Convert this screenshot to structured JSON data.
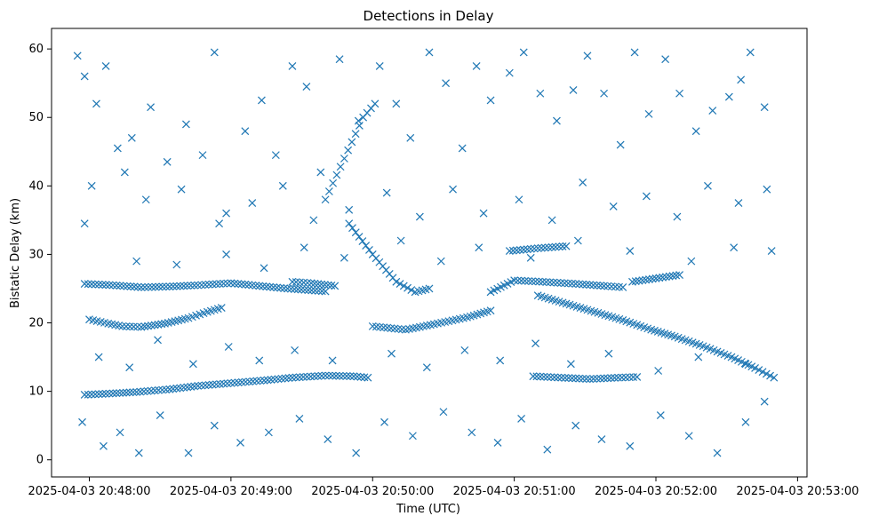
{
  "chart_data": {
    "type": "scatter",
    "title": "Detections in Delay",
    "xlabel": "Time (UTC)",
    "ylabel": "Bistatic Delay (km)",
    "xlim": [
      "2025-04-03 20:47:44",
      "2025-04-03 20:53:04"
    ],
    "ylim": [
      -2.5,
      63
    ],
    "x_ticks": [
      "2025-04-03 20:48:00",
      "2025-04-03 20:49:00",
      "2025-04-03 20:50:00",
      "2025-04-03 20:51:00",
      "2025-04-03 20:52:00",
      "2025-04-03 20:53:00"
    ],
    "y_ticks": [
      0,
      10,
      20,
      30,
      40,
      50,
      60
    ],
    "marker": "x",
    "color": "#1f77b4",
    "grid": false,
    "series": [
      {
        "tracks": [
          {
            "t": [
              [
                "2025-04-03 20:47:58",
                25.7
              ],
              [
                "2025-04-03 20:48:10",
                25.5
              ],
              [
                "2025-04-03 20:48:22",
                25.2
              ],
              [
                "2025-04-03 20:48:34",
                25.3
              ],
              [
                "2025-04-03 20:48:46",
                25.5
              ],
              [
                "2025-04-03 20:49:00",
                25.8
              ],
              [
                "2025-04-03 20:49:12",
                25.4
              ],
              [
                "2025-04-03 20:49:24",
                25.0
              ],
              [
                "2025-04-03 20:49:40",
                24.6
              ]
            ]
          },
          {
            "t": [
              [
                "2025-04-03 20:48:00",
                20.5
              ],
              [
                "2025-04-03 20:48:08",
                19.9
              ],
              [
                "2025-04-03 20:48:14",
                19.5
              ],
              [
                "2025-04-03 20:48:22",
                19.4
              ],
              [
                "2025-04-03 20:48:32",
                19.9
              ],
              [
                "2025-04-03 20:48:42",
                20.7
              ],
              [
                "2025-04-03 20:48:50",
                21.6
              ],
              [
                "2025-04-03 20:48:56",
                22.2
              ]
            ]
          },
          {
            "t": [
              [
                "2025-04-03 20:47:58",
                9.5
              ],
              [
                "2025-04-03 20:48:10",
                9.7
              ],
              [
                "2025-04-03 20:48:20",
                9.9
              ],
              [
                "2025-04-03 20:48:34",
                10.3
              ],
              [
                "2025-04-03 20:48:46",
                10.8
              ],
              [
                "2025-04-03 20:49:00",
                11.2
              ],
              [
                "2025-04-03 20:49:14",
                11.6
              ],
              [
                "2025-04-03 20:49:26",
                12.0
              ],
              [
                "2025-04-03 20:49:40",
                12.3
              ],
              [
                "2025-04-03 20:49:52",
                12.2
              ],
              [
                "2025-04-03 20:49:58",
                12.0
              ]
            ]
          },
          {
            "t": [
              [
                "2025-04-03 20:49:26",
                26.0
              ],
              [
                "2025-04-03 20:49:34",
                25.8
              ],
              [
                "2025-04-03 20:49:44",
                25.4
              ]
            ]
          },
          {
            "t": [
              [
                "2025-04-03 20:49:40",
                38.0
              ],
              [
                "2025-04-03 20:49:48",
                44.0
              ],
              [
                "2025-04-03 20:49:56",
                50.0
              ],
              [
                "2025-04-03 20:50:01",
                52.0
              ]
            ]
          },
          {
            "t": [
              [
                "2025-04-03 20:49:50",
                34.5
              ],
              [
                "2025-04-03 20:50:00",
                30.0
              ],
              [
                "2025-04-03 20:50:10",
                26.0
              ],
              [
                "2025-04-03 20:50:18",
                24.5
              ],
              [
                "2025-04-03 20:50:24",
                25.0
              ]
            ]
          },
          {
            "t": [
              [
                "2025-04-03 20:50:00",
                19.5
              ],
              [
                "2025-04-03 20:50:14",
                19.0
              ],
              [
                "2025-04-03 20:50:26",
                19.8
              ],
              [
                "2025-04-03 20:50:40",
                20.8
              ],
              [
                "2025-04-03 20:50:50",
                21.8
              ]
            ]
          },
          {
            "t": [
              [
                "2025-04-03 20:50:50",
                24.5
              ],
              [
                "2025-04-03 20:51:00",
                26.2
              ],
              [
                "2025-04-03 20:51:12",
                26.0
              ],
              [
                "2025-04-03 20:51:26",
                25.7
              ],
              [
                "2025-04-03 20:51:38",
                25.4
              ],
              [
                "2025-04-03 20:51:46",
                25.2
              ]
            ]
          },
          {
            "t": [
              [
                "2025-04-03 20:51:10",
                24.0
              ],
              [
                "2025-04-03 20:51:22",
                22.8
              ],
              [
                "2025-04-03 20:51:34",
                21.6
              ],
              [
                "2025-04-03 20:51:46",
                20.4
              ],
              [
                "2025-04-03 20:51:58",
                19.0
              ],
              [
                "2025-04-03 20:52:08",
                18.0
              ],
              [
                "2025-04-03 20:52:20",
                16.6
              ],
              [
                "2025-04-03 20:52:32",
                15.0
              ],
              [
                "2025-04-03 20:52:42",
                13.4
              ],
              [
                "2025-04-03 20:52:50",
                12.0
              ]
            ]
          },
          {
            "t": [
              [
                "2025-04-03 20:51:08",
                12.2
              ],
              [
                "2025-04-03 20:51:20",
                12.0
              ],
              [
                "2025-04-03 20:51:32",
                11.8
              ],
              [
                "2025-04-03 20:51:44",
                12.0
              ],
              [
                "2025-04-03 20:51:52",
                12.1
              ]
            ]
          },
          {
            "t": [
              [
                "2025-04-03 20:50:58",
                30.5
              ],
              [
                "2025-04-03 20:51:10",
                30.9
              ],
              [
                "2025-04-03 20:51:22",
                31.2
              ]
            ]
          },
          {
            "t": [
              [
                "2025-04-03 20:51:50",
                26.0
              ],
              [
                "2025-04-03 20:52:00",
                26.5
              ],
              [
                "2025-04-03 20:52:10",
                27.0
              ]
            ]
          }
        ],
        "points": [
          [
            "2025-04-03 20:47:55",
            59.0
          ],
          [
            "2025-04-03 20:47:58",
            56.0
          ],
          [
            "2025-04-03 20:48:03",
            52.0
          ],
          [
            "2025-04-03 20:48:07",
            57.5
          ],
          [
            "2025-04-03 20:48:12",
            45.5
          ],
          [
            "2025-04-03 20:48:18",
            47.0
          ],
          [
            "2025-04-03 20:48:26",
            51.5
          ],
          [
            "2025-04-03 20:48:33",
            43.5
          ],
          [
            "2025-04-03 20:48:41",
            49.0
          ],
          [
            "2025-04-03 20:48:48",
            44.5
          ],
          [
            "2025-04-03 20:48:53",
            59.5
          ],
          [
            "2025-04-03 20:48:58",
            36.0
          ],
          [
            "2025-04-03 20:49:06",
            48.0
          ],
          [
            "2025-04-03 20:49:13",
            52.5
          ],
          [
            "2025-04-03 20:49:19",
            44.5
          ],
          [
            "2025-04-03 20:49:26",
            57.5
          ],
          [
            "2025-04-03 20:49:32",
            54.5
          ],
          [
            "2025-04-03 20:49:38",
            42.0
          ],
          [
            "2025-04-03 20:49:46",
            58.5
          ],
          [
            "2025-04-03 20:49:54",
            49.5
          ],
          [
            "2025-04-03 20:50:03",
            57.5
          ],
          [
            "2025-04-03 20:50:10",
            52.0
          ],
          [
            "2025-04-03 20:50:16",
            47.0
          ],
          [
            "2025-04-03 20:50:24",
            59.5
          ],
          [
            "2025-04-03 20:50:31",
            55.0
          ],
          [
            "2025-04-03 20:50:38",
            45.5
          ],
          [
            "2025-04-03 20:50:44",
            57.5
          ],
          [
            "2025-04-03 20:50:50",
            52.5
          ],
          [
            "2025-04-03 20:50:58",
            56.5
          ],
          [
            "2025-04-03 20:51:04",
            59.5
          ],
          [
            "2025-04-03 20:51:11",
            53.5
          ],
          [
            "2025-04-03 20:51:18",
            49.5
          ],
          [
            "2025-04-03 20:51:25",
            54.0
          ],
          [
            "2025-04-03 20:51:31",
            59.0
          ],
          [
            "2025-04-03 20:51:38",
            53.5
          ],
          [
            "2025-04-03 20:51:45",
            46.0
          ],
          [
            "2025-04-03 20:51:51",
            59.5
          ],
          [
            "2025-04-03 20:51:57",
            50.5
          ],
          [
            "2025-04-03 20:52:04",
            58.5
          ],
          [
            "2025-04-03 20:52:10",
            53.5
          ],
          [
            "2025-04-03 20:52:17",
            48.0
          ],
          [
            "2025-04-03 20:52:24",
            51.0
          ],
          [
            "2025-04-03 20:52:31",
            53.0
          ],
          [
            "2025-04-03 20:52:36",
            55.5
          ],
          [
            "2025-04-03 20:52:40",
            59.5
          ],
          [
            "2025-04-03 20:52:46",
            51.5
          ],
          [
            "2025-04-03 20:48:01",
            40.0
          ],
          [
            "2025-04-03 20:48:15",
            42.0
          ],
          [
            "2025-04-03 20:48:24",
            38.0
          ],
          [
            "2025-04-03 20:48:39",
            39.5
          ],
          [
            "2025-04-03 20:48:55",
            34.5
          ],
          [
            "2025-04-03 20:49:09",
            37.5
          ],
          [
            "2025-04-03 20:49:22",
            40.0
          ],
          [
            "2025-04-03 20:49:35",
            35.0
          ],
          [
            "2025-04-03 20:49:50",
            36.5
          ],
          [
            "2025-04-03 20:50:06",
            39.0
          ],
          [
            "2025-04-03 20:50:20",
            35.5
          ],
          [
            "2025-04-03 20:50:34",
            39.5
          ],
          [
            "2025-04-03 20:50:47",
            36.0
          ],
          [
            "2025-04-03 20:51:02",
            38.0
          ],
          [
            "2025-04-03 20:51:16",
            35.0
          ],
          [
            "2025-04-03 20:51:29",
            40.5
          ],
          [
            "2025-04-03 20:51:42",
            37.0
          ],
          [
            "2025-04-03 20:51:56",
            38.5
          ],
          [
            "2025-04-03 20:52:09",
            35.5
          ],
          [
            "2025-04-03 20:52:22",
            40.0
          ],
          [
            "2025-04-03 20:52:35",
            37.5
          ],
          [
            "2025-04-03 20:52:47",
            39.5
          ],
          [
            "2025-04-03 20:47:58",
            34.5
          ],
          [
            "2025-04-03 20:48:20",
            29.0
          ],
          [
            "2025-04-03 20:48:37",
            28.5
          ],
          [
            "2025-04-03 20:48:58",
            30.0
          ],
          [
            "2025-04-03 20:49:14",
            28.0
          ],
          [
            "2025-04-03 20:49:31",
            31.0
          ],
          [
            "2025-04-03 20:49:48",
            29.5
          ],
          [
            "2025-04-03 20:50:12",
            32.0
          ],
          [
            "2025-04-03 20:50:29",
            29.0
          ],
          [
            "2025-04-03 20:50:45",
            31.0
          ],
          [
            "2025-04-03 20:51:07",
            29.5
          ],
          [
            "2025-04-03 20:51:27",
            32.0
          ],
          [
            "2025-04-03 20:51:49",
            30.5
          ],
          [
            "2025-04-03 20:52:15",
            29.0
          ],
          [
            "2025-04-03 20:52:33",
            31.0
          ],
          [
            "2025-04-03 20:52:49",
            30.5
          ],
          [
            "2025-04-03 20:48:04",
            15.0
          ],
          [
            "2025-04-03 20:48:17",
            13.5
          ],
          [
            "2025-04-03 20:48:29",
            17.5
          ],
          [
            "2025-04-03 20:48:44",
            14.0
          ],
          [
            "2025-04-03 20:48:59",
            16.5
          ],
          [
            "2025-04-03 20:49:12",
            14.5
          ],
          [
            "2025-04-03 20:49:27",
            16.0
          ],
          [
            "2025-04-03 20:49:43",
            14.5
          ],
          [
            "2025-04-03 20:50:08",
            15.5
          ],
          [
            "2025-04-03 20:50:23",
            13.5
          ],
          [
            "2025-04-03 20:50:39",
            16.0
          ],
          [
            "2025-04-03 20:50:54",
            14.5
          ],
          [
            "2025-04-03 20:51:09",
            17.0
          ],
          [
            "2025-04-03 20:51:24",
            14.0
          ],
          [
            "2025-04-03 20:51:40",
            15.5
          ],
          [
            "2025-04-03 20:52:01",
            13.0
          ],
          [
            "2025-04-03 20:52:18",
            15.0
          ],
          [
            "2025-04-03 20:52:38",
            14.0
          ],
          [
            "2025-04-03 20:47:57",
            5.5
          ],
          [
            "2025-04-03 20:48:06",
            2.0
          ],
          [
            "2025-04-03 20:48:13",
            4.0
          ],
          [
            "2025-04-03 20:48:21",
            1.0
          ],
          [
            "2025-04-03 20:48:30",
            6.5
          ],
          [
            "2025-04-03 20:48:42",
            1.0
          ],
          [
            "2025-04-03 20:48:53",
            5.0
          ],
          [
            "2025-04-03 20:49:04",
            2.5
          ],
          [
            "2025-04-03 20:49:16",
            4.0
          ],
          [
            "2025-04-03 20:49:29",
            6.0
          ],
          [
            "2025-04-03 20:49:41",
            3.0
          ],
          [
            "2025-04-03 20:49:53",
            1.0
          ],
          [
            "2025-04-03 20:50:05",
            5.5
          ],
          [
            "2025-04-03 20:50:17",
            3.5
          ],
          [
            "2025-04-03 20:50:30",
            7.0
          ],
          [
            "2025-04-03 20:50:42",
            4.0
          ],
          [
            "2025-04-03 20:50:53",
            2.5
          ],
          [
            "2025-04-03 20:51:03",
            6.0
          ],
          [
            "2025-04-03 20:51:14",
            1.5
          ],
          [
            "2025-04-03 20:51:26",
            5.0
          ],
          [
            "2025-04-03 20:51:37",
            3.0
          ],
          [
            "2025-04-03 20:51:49",
            2.0
          ],
          [
            "2025-04-03 20:52:02",
            6.5
          ],
          [
            "2025-04-03 20:52:14",
            3.5
          ],
          [
            "2025-04-03 20:52:26",
            1.0
          ],
          [
            "2025-04-03 20:52:38",
            5.5
          ],
          [
            "2025-04-03 20:52:46",
            8.5
          ]
        ]
      }
    ]
  }
}
